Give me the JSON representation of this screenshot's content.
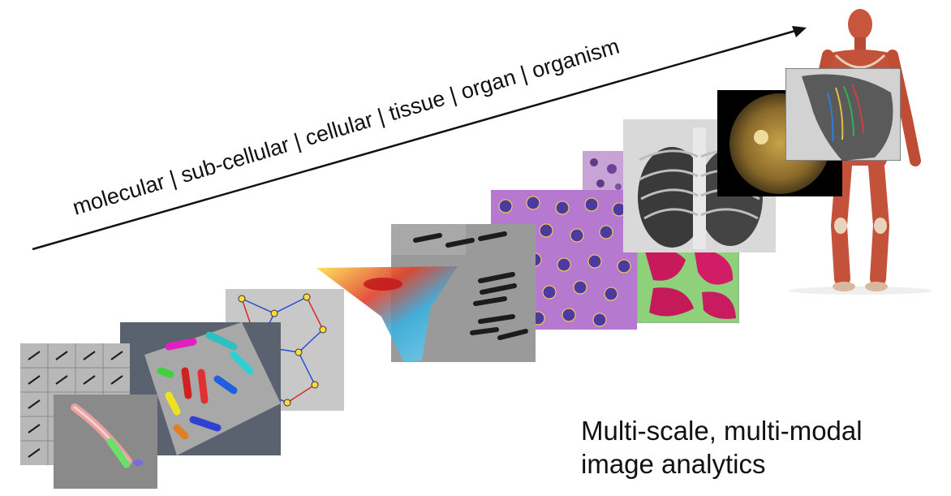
{
  "scale_label": "molecular | sub-cellular | cellular | tissue | organ | organism",
  "caption": {
    "line1": "Multi-scale, multi-modal",
    "line2": "image analytics"
  },
  "panels": [
    {
      "name": "molecular-particle-grid"
    },
    {
      "name": "molecular-closeup"
    },
    {
      "name": "subcellular-3d-render"
    },
    {
      "name": "cell-network-graph"
    },
    {
      "name": "cell-heatmap"
    },
    {
      "name": "bacteria-microscopy"
    },
    {
      "name": "histology-nuclei"
    },
    {
      "name": "histology-small"
    },
    {
      "name": "tissue-stain"
    },
    {
      "name": "chest-xray"
    },
    {
      "name": "retina-fundus"
    },
    {
      "name": "organ-xray"
    },
    {
      "name": "human-anatomy-figure"
    }
  ]
}
